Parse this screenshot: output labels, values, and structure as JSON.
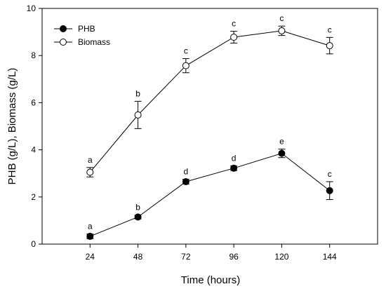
{
  "chart_data": {
    "type": "line",
    "title": "",
    "xlabel": "Time (hours)",
    "ylabel": "PHB (g/L), Biomass (g/L)",
    "x": [
      24,
      48,
      72,
      96,
      120,
      144
    ],
    "xticks": [
      "24",
      "48",
      "72",
      "96",
      "120",
      "144"
    ],
    "yticks": [
      "0",
      "2",
      "4",
      "6",
      "8",
      "10"
    ],
    "xlim": [
      0,
      168
    ],
    "ylim": [
      0,
      10
    ],
    "grid": false,
    "legend_position": "top-left",
    "series": [
      {
        "name": "PHB",
        "marker": "filled-circle",
        "values": [
          0.33,
          1.15,
          2.65,
          3.22,
          3.85,
          2.27
        ],
        "errors": [
          0.1,
          0.08,
          0.1,
          0.1,
          0.18,
          0.38
        ],
        "labels": [
          "a",
          "b",
          "d",
          "d",
          "e",
          "c"
        ],
        "color": "#000000"
      },
      {
        "name": "Biomass",
        "marker": "open-circle",
        "values": [
          3.05,
          5.48,
          7.57,
          8.78,
          9.05,
          8.42
        ],
        "errors": [
          0.2,
          0.58,
          0.3,
          0.25,
          0.2,
          0.35
        ],
        "labels": [
          "a",
          "b",
          "c",
          "c",
          "c",
          "c"
        ],
        "color": "#000000"
      }
    ]
  }
}
